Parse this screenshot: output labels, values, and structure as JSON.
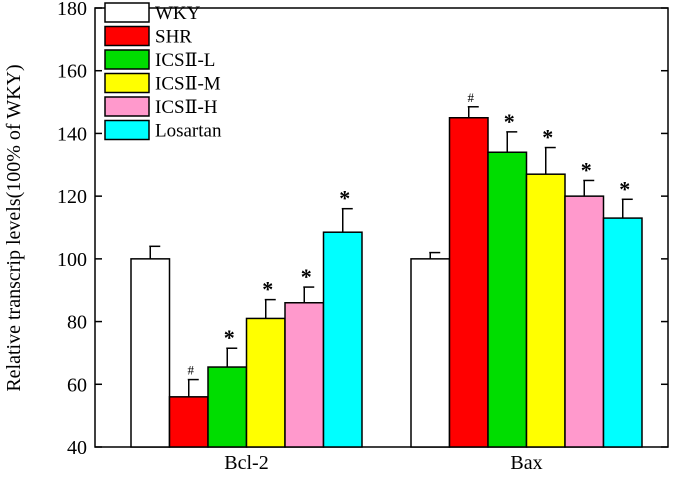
{
  "chart_data": {
    "type": "bar",
    "title": "",
    "xlabel": "",
    "ylabel": "Relative transcrip levels(100% of WKY)",
    "ylim": [
      40,
      180
    ],
    "yticks": [
      40,
      60,
      80,
      100,
      120,
      140,
      160,
      180
    ],
    "grid": false,
    "legend_position": "top-left",
    "categories": [
      "Bcl-2",
      "Bax"
    ],
    "series": [
      {
        "name": "WKY",
        "color": "#ffffff",
        "values": [
          100,
          100
        ],
        "errors": [
          4,
          2
        ],
        "marks": [
          "",
          ""
        ]
      },
      {
        "name": "SHR",
        "color": "#ff0000",
        "values": [
          56,
          145
        ],
        "errors": [
          5.5,
          3.5
        ],
        "marks": [
          "#",
          "#"
        ]
      },
      {
        "name": "ICSⅡ-L",
        "color": "#00dd00",
        "values": [
          65.5,
          134
        ],
        "errors": [
          6,
          6.5
        ],
        "marks": [
          "*",
          "*"
        ]
      },
      {
        "name": "ICSⅡ-M",
        "color": "#ffff00",
        "values": [
          81,
          127
        ],
        "errors": [
          6,
          8.5
        ],
        "marks": [
          "*",
          "*"
        ]
      },
      {
        "name": "ICSⅡ-H",
        "color": "#ff99cc",
        "values": [
          86,
          120
        ],
        "errors": [
          5,
          5
        ],
        "marks": [
          "*",
          "*"
        ]
      },
      {
        "name": "Losartan",
        "color": "#00ffff",
        "values": [
          108.5,
          113
        ],
        "errors": [
          7.5,
          6
        ],
        "marks": [
          "*",
          "*"
        ]
      }
    ]
  }
}
